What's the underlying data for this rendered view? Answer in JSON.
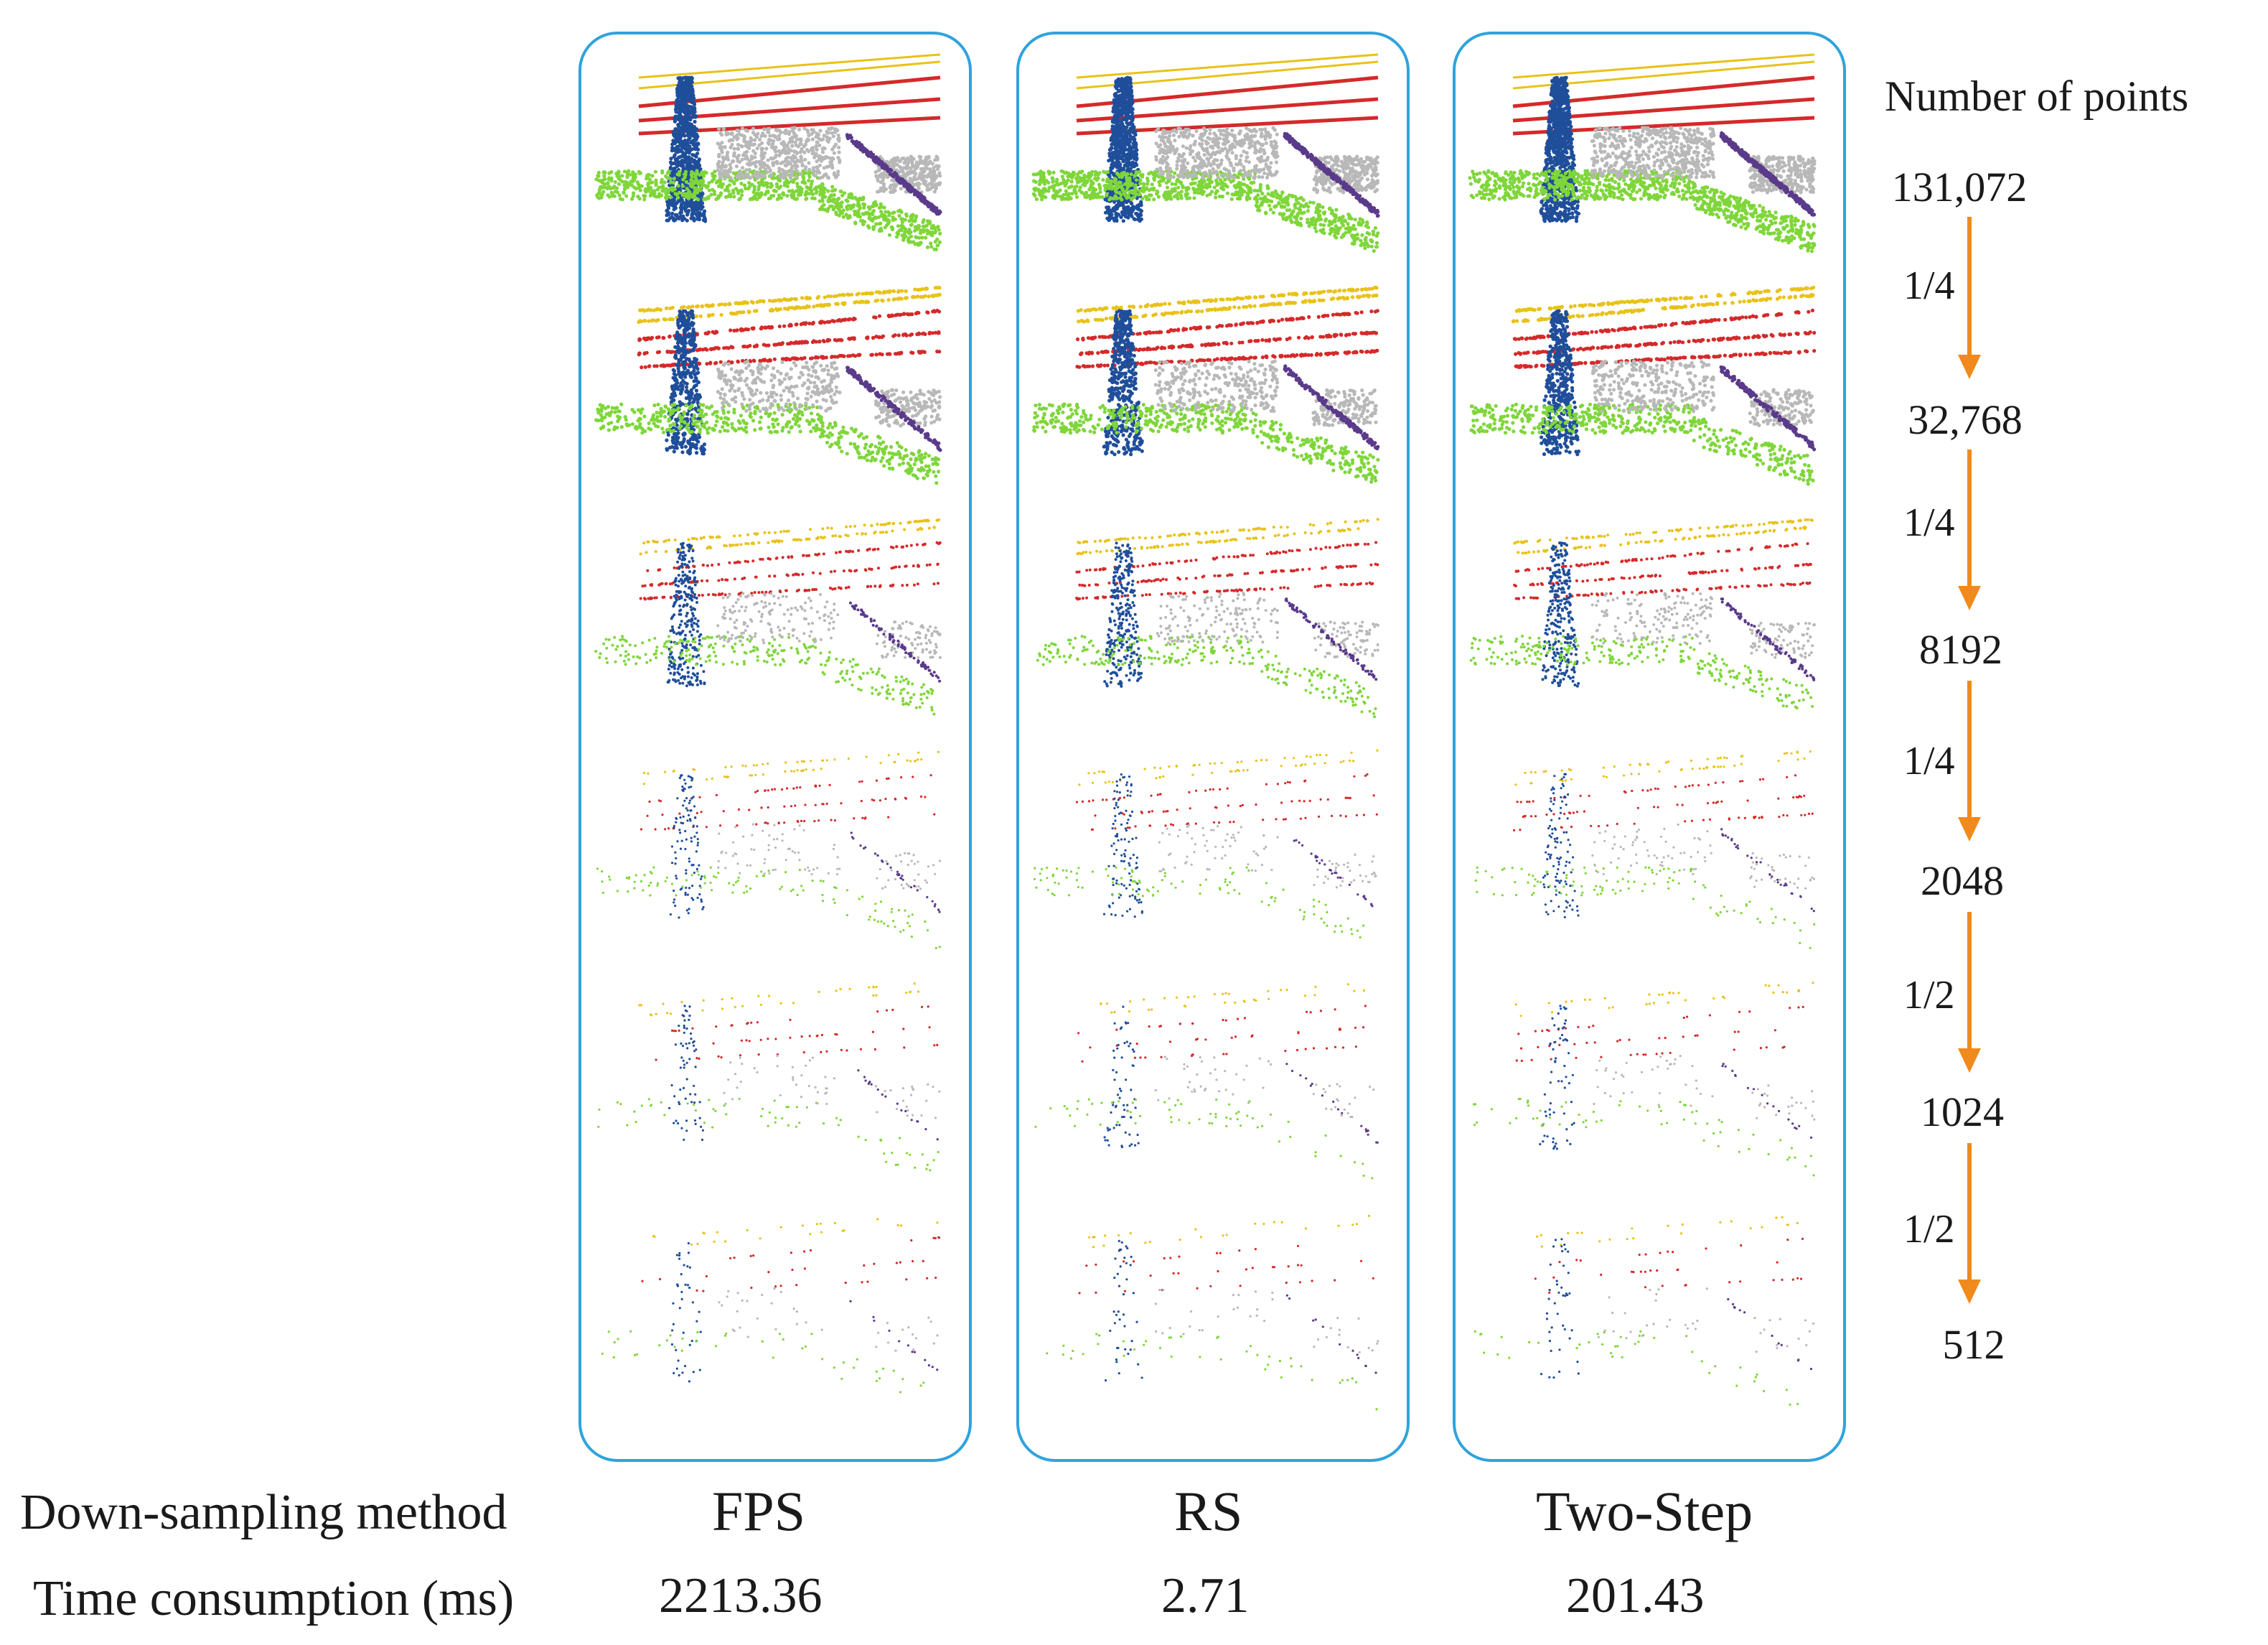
{
  "header": {
    "points_label": "Number of points"
  },
  "levels": [
    {
      "count": "131,072"
    },
    {
      "count": "32,768",
      "ratio": "1/4"
    },
    {
      "count": "8192",
      "ratio": "1/4"
    },
    {
      "count": "2048",
      "ratio": "1/4"
    },
    {
      "count": "1024",
      "ratio": "1/2"
    },
    {
      "count": "512",
      "ratio": "1/2"
    }
  ],
  "row_labels": {
    "method": "Down-sampling method",
    "time": "Time consumption (ms)"
  },
  "methods": [
    {
      "name": "FPS",
      "time": "2213.36"
    },
    {
      "name": "RS",
      "time": "2.71"
    },
    {
      "name": "Two-Step",
      "time": "201.43"
    }
  ],
  "colors": {
    "panel_border": "#2fa3dc",
    "arrow": "#f08a1c",
    "tower": "#1f4e9a",
    "wire_red": "#d42a2a",
    "wire_yellow": "#e8c21a",
    "ground": "#7fd63a",
    "building": "#b8b8b8",
    "insulator": "#5a3a8a"
  }
}
